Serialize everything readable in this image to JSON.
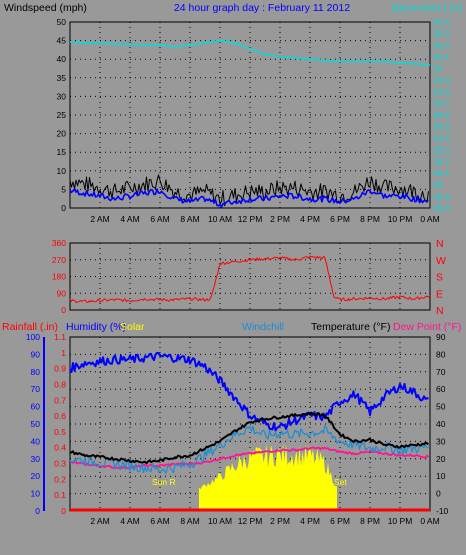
{
  "header": {
    "left_label": "Windspeed (mph)",
    "center_title": "24 hour graph day : February 11 2012",
    "right_label": "Barometer (.in)"
  },
  "time_axis_labels": [
    "2 AM",
    "4 AM",
    "6 AM",
    "8 AM",
    "10 AM",
    "12 PM",
    "2 PM",
    "4 PM",
    "6 PM",
    "8 PM",
    "10 PM",
    "0 AM"
  ],
  "panel_wind": {
    "left_ticks": [
      "50",
      "45",
      "40",
      "35",
      "30",
      "25",
      "20",
      "15",
      "10",
      "5",
      "0"
    ],
    "right_ticks": [
      "30.4",
      "30.3",
      "30.2",
      "30.1",
      "30",
      "29.9",
      "29.8",
      "29.7",
      "29.6",
      "29.5",
      "29.4",
      "29.3",
      "29.2",
      "29.1",
      "29",
      "28.9",
      "28.8"
    ]
  },
  "panel_dir": {
    "left_ticks": [
      "360",
      "270",
      "180",
      "90",
      "0"
    ],
    "right_ticks": [
      "N",
      "W",
      "S",
      "E",
      "N"
    ]
  },
  "panel_bottom": {
    "labels": {
      "rain": "Rainfall (.in)",
      "humidity": "Humidity (%)",
      "solar": "Solar",
      "windchill": "Windchill",
      "temperature": "Temperature (°F)",
      "dewpoint": "Dew Point (°F)"
    },
    "hum_ticks": [
      "100",
      "90",
      "80",
      "70",
      "60",
      "50",
      "40",
      "30",
      "20",
      "10",
      "0"
    ],
    "rain_ticks": [
      "1.1",
      "1",
      "0.9",
      "0.8",
      "0.7",
      "0.6",
      "0.5",
      "0.4",
      "0.3",
      "0.2",
      "0.1",
      "0"
    ],
    "temp_ticks": [
      "90",
      "80",
      "70",
      "60",
      "50",
      "40",
      "30",
      "20",
      "10",
      "0",
      "-10"
    ],
    "sunrise_label": "Sun R",
    "sunset_label": "Set"
  },
  "colors": {
    "background": "#999999",
    "wind_gust": "#000000",
    "wind_avg": "#0000ff",
    "barometer": "#00dddd",
    "direction": "#ff0000",
    "temperature": "#000000",
    "humidity": "#0000ff",
    "windchill": "#1a8cd8",
    "dewpoint": "#ff1493",
    "solar": "#ffff00",
    "rain": "#ff0000"
  },
  "chart_data": [
    {
      "type": "line",
      "title": "24 hour graph day : February 11 2012",
      "hours": [
        0,
        1,
        2,
        3,
        4,
        5,
        6,
        7,
        8,
        9,
        10,
        11,
        12,
        13,
        14,
        15,
        16,
        17,
        18,
        19,
        20,
        21,
        22,
        23,
        24
      ],
      "series": [
        {
          "name": "Windspeed (mph)",
          "axis": "left",
          "ylim": [
            0,
            50
          ],
          "values": [
            6,
            5,
            4,
            3,
            4,
            5,
            6,
            3,
            2,
            3,
            1,
            2,
            3,
            3,
            4,
            4,
            3,
            3,
            2,
            3,
            6,
            4,
            4,
            3,
            2
          ]
        },
        {
          "name": "Barometer (.in)",
          "axis": "right",
          "ylim": [
            28.8,
            30.4
          ],
          "values": [
            30.23,
            30.22,
            30.22,
            30.21,
            30.21,
            30.2,
            30.2,
            30.19,
            30.2,
            30.22,
            30.24,
            30.22,
            30.17,
            30.12,
            30.1,
            30.09,
            30.08,
            30.07,
            30.06,
            30.06,
            30.06,
            30.06,
            30.05,
            30.04,
            30.03
          ]
        }
      ]
    },
    {
      "type": "line",
      "ylabel": "Wind direction",
      "ylim": [
        0,
        360
      ],
      "hours": [
        0,
        1,
        2,
        3,
        4,
        5,
        6,
        7,
        8,
        9,
        9.4,
        10,
        11,
        12,
        13,
        14,
        15,
        16,
        17,
        17.6,
        18,
        19,
        20,
        21,
        22,
        23,
        24
      ],
      "values": [
        50,
        45,
        50,
        55,
        50,
        60,
        55,
        55,
        60,
        55,
        60,
        250,
        260,
        270,
        275,
        280,
        270,
        285,
        280,
        70,
        55,
        60,
        65,
        60,
        70,
        60,
        75
      ]
    },
    {
      "type": "line",
      "hours": [
        0,
        1,
        2,
        3,
        4,
        5,
        6,
        7,
        8,
        9,
        10,
        11,
        12,
        13,
        14,
        15,
        16,
        17,
        18,
        19,
        20,
        21,
        22,
        23,
        24
      ],
      "series": [
        {
          "name": "Temperature (°F)",
          "axis": "right",
          "ylim": [
            -10,
            90
          ],
          "values": [
            24,
            22,
            21,
            20,
            19,
            18,
            19,
            21,
            22,
            26,
            30,
            36,
            41,
            43,
            44,
            45,
            46,
            45,
            34,
            30,
            31,
            28,
            27,
            28,
            29
          ]
        },
        {
          "name": "Humidity (%)",
          "axis": "left",
          "ylim": [
            0,
            100
          ],
          "values": [
            82,
            85,
            86,
            87,
            87,
            88,
            89,
            88,
            87,
            83,
            75,
            65,
            55,
            50,
            48,
            52,
            55,
            54,
            63,
            67,
            57,
            66,
            72,
            68,
            62
          ]
        },
        {
          "name": "Windchill",
          "axis": "right",
          "ylim": [
            -10,
            90
          ],
          "values": [
            20,
            19,
            18,
            17,
            16,
            15,
            14,
            15,
            17,
            22,
            28,
            34,
            38,
            33,
            35,
            34,
            35,
            36,
            30,
            28,
            26,
            27,
            25,
            26,
            27
          ]
        },
        {
          "name": "Dew Point (°F)",
          "axis": "right",
          "ylim": [
            -10,
            90
          ],
          "values": [
            18,
            17,
            16,
            15,
            15,
            16,
            16,
            17,
            17,
            18,
            20,
            22,
            23,
            24,
            25,
            25,
            26,
            26,
            24,
            23,
            24,
            23,
            22,
            22,
            21
          ]
        },
        {
          "name": "Solar",
          "axis": "right",
          "ylim": [
            -10,
            90
          ],
          "values": [
            0,
            0,
            0,
            0,
            0,
            0,
            0,
            0,
            0,
            6,
            12,
            20,
            26,
            27,
            28,
            28,
            27,
            22,
            0,
            0,
            0,
            0,
            0,
            0,
            0
          ]
        },
        {
          "name": "Rainfall (.in)",
          "axis": "left2",
          "ylim": [
            0,
            1.1
          ],
          "values": [
            0,
            0,
            0,
            0,
            0,
            0,
            0,
            0,
            0,
            0,
            0,
            0,
            0,
            0,
            0,
            0,
            0,
            0,
            0,
            0,
            0,
            0,
            0,
            0,
            0
          ]
        }
      ]
    }
  ]
}
